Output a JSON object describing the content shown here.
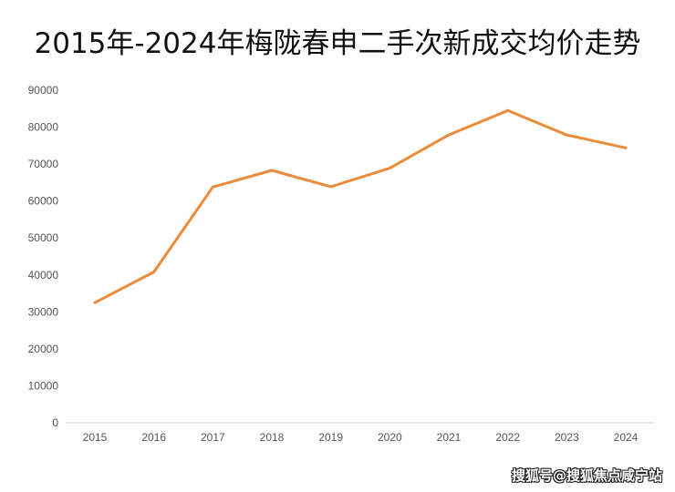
{
  "chart_data": {
    "type": "line",
    "title": "2015年-2024年梅陇春申二手次新成交均价走势",
    "xlabel": "",
    "ylabel": "",
    "categories": [
      "2015",
      "2016",
      "2017",
      "2018",
      "2019",
      "2020",
      "2021",
      "2022",
      "2023",
      "2024"
    ],
    "series": [
      {
        "values": [
          32500,
          40800,
          63800,
          68300,
          63900,
          68900,
          77900,
          84500,
          77900,
          74400
        ],
        "color": "#ED8B3A"
      }
    ],
    "ylim": [
      0,
      90000
    ],
    "yticks": [
      "0",
      "10000",
      "20000",
      "30000",
      "40000",
      "50000",
      "60000",
      "70000",
      "80000",
      "90000"
    ],
    "grid": false,
    "legend": "none"
  },
  "watermark": {
    "text": "搜狐号@搜狐焦点咸宁站"
  }
}
